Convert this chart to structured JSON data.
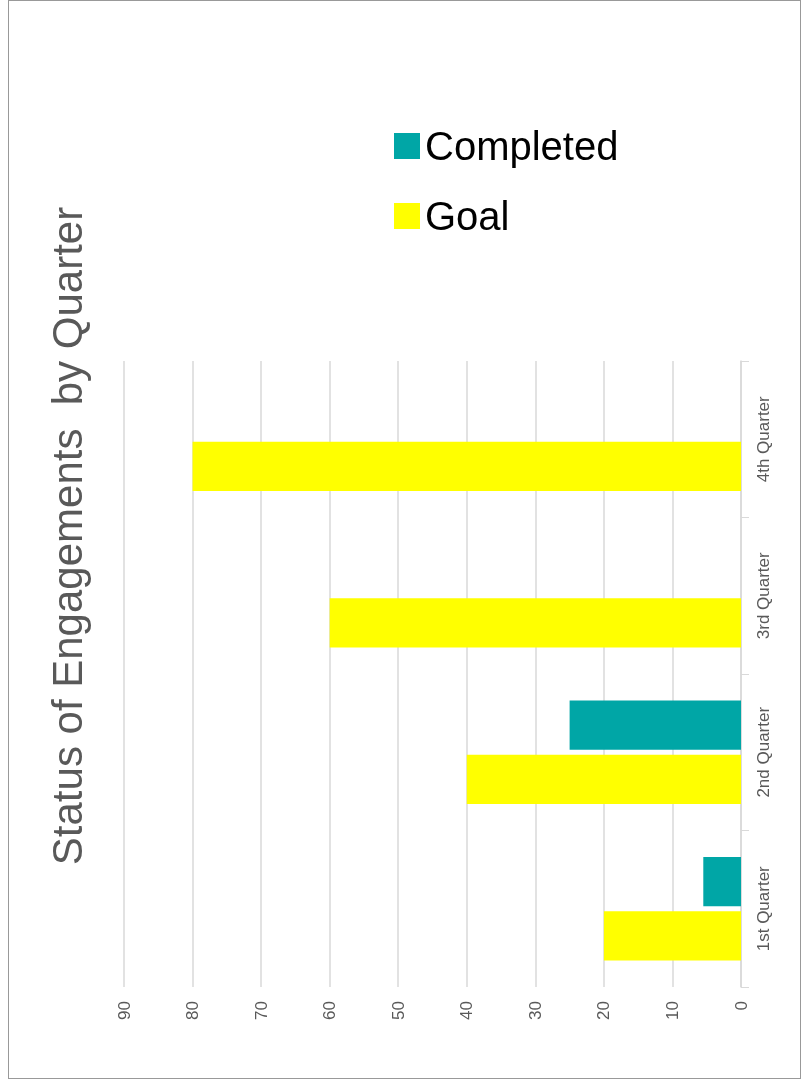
{
  "chart_data": {
    "type": "bar",
    "title": "Status of Engagements  by Quarter",
    "orientation": "horizontal",
    "categories": [
      "4th Quarter",
      "3rd Quarter",
      "2nd Quarter",
      "1st Quarter"
    ],
    "series": [
      {
        "name": "Completed",
        "color": "#00a6a6",
        "values": [
          null,
          null,
          25,
          5.5
        ]
      },
      {
        "name": "Goal",
        "color": "#ffff00",
        "values": [
          80,
          60,
          40,
          20
        ]
      }
    ],
    "xlim": [
      90,
      0
    ],
    "xticks": [
      0,
      10,
      20,
      30,
      40,
      50,
      60,
      70,
      80,
      90
    ],
    "grid": "x",
    "legend": "top"
  }
}
